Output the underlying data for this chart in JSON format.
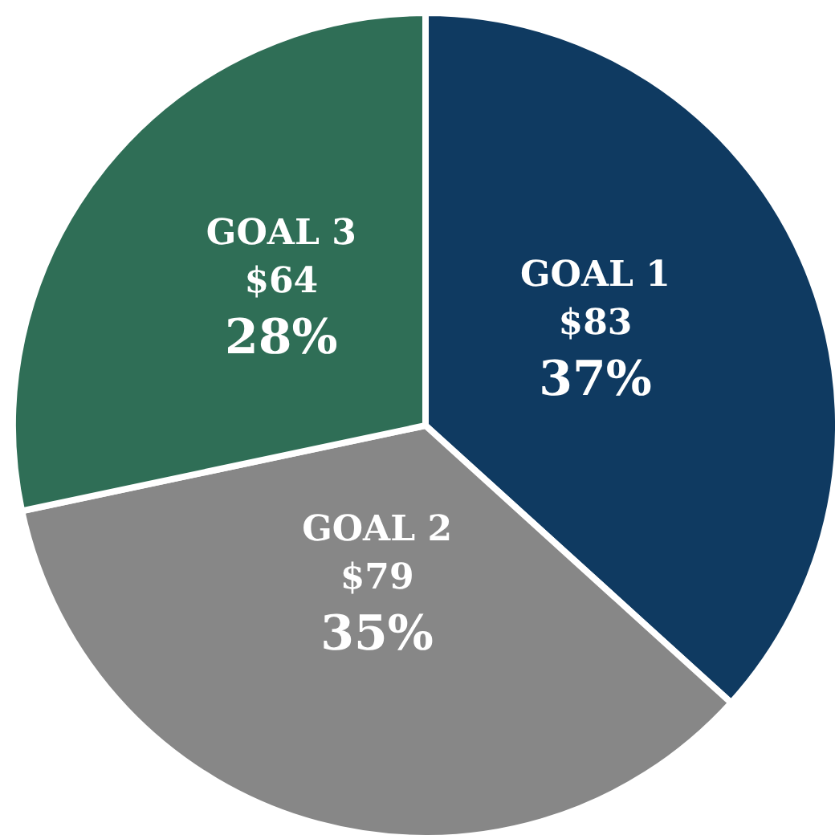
{
  "chart_data": {
    "type": "pie",
    "categories": [
      "GOAL 1",
      "GOAL 2",
      "GOAL 3"
    ],
    "values": [
      83,
      79,
      64
    ],
    "value_labels": [
      "$83\n37%",
      "$79\n35%",
      "$64\n28%"
    ],
    "colors": [
      "#0f3a61",
      "#878787",
      "#2f6e56"
    ]
  }
}
